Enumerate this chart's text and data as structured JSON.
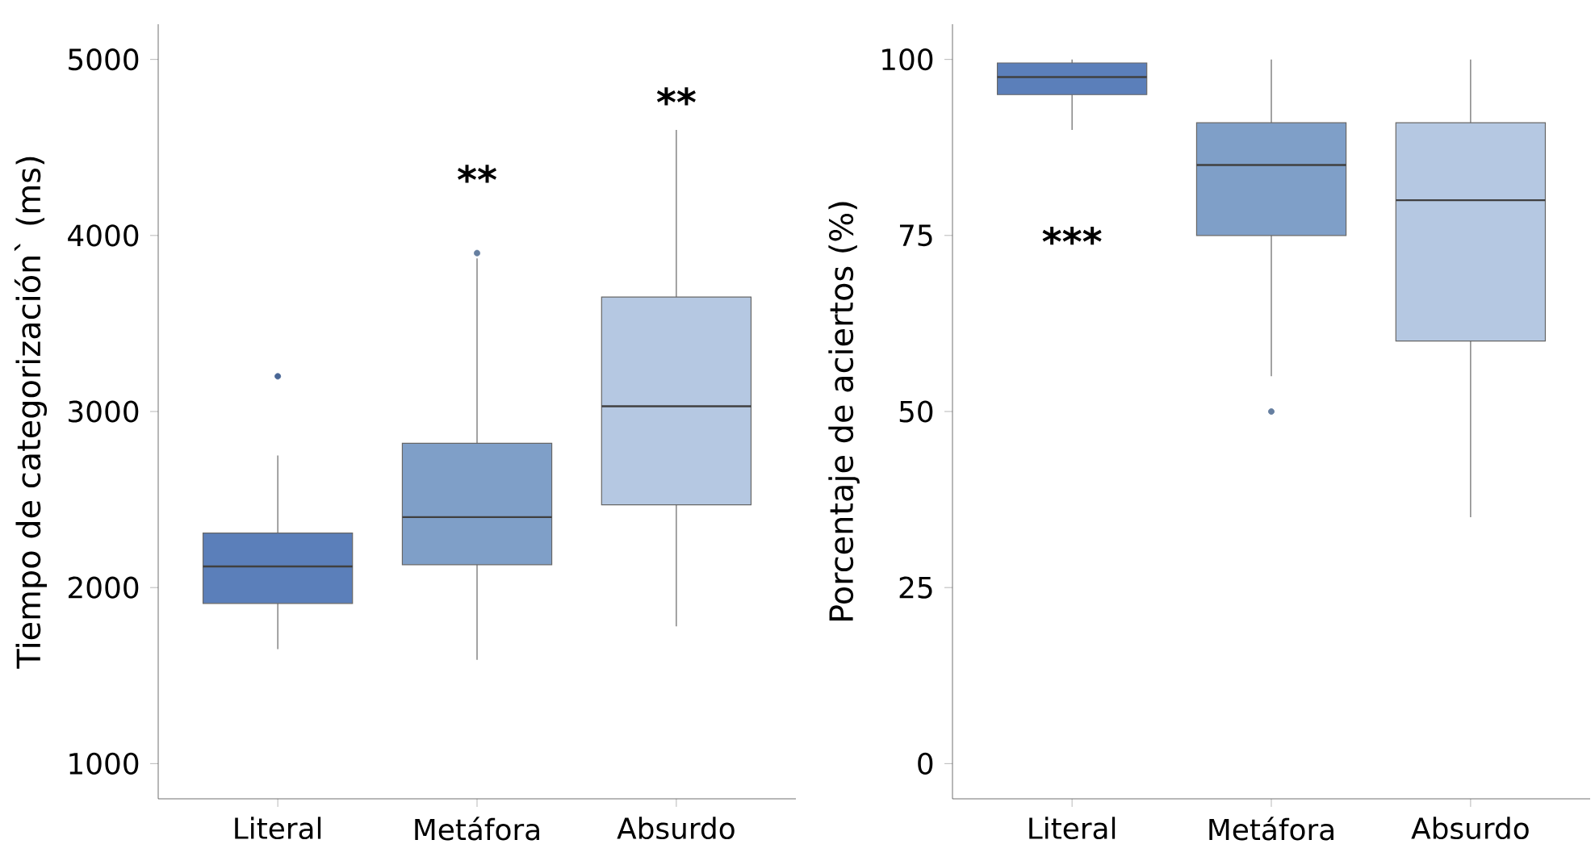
{
  "chart_data": [
    {
      "type": "box",
      "ylabel": "Tiempo de categorización` (ms)",
      "categories": [
        "Literal",
        "Metáfora",
        "Absurdo"
      ],
      "colors": [
        "#5b7fba",
        "#7f9fc8",
        "#b5c8e2"
      ],
      "boxes": [
        {
          "low": 1650,
          "q1": 1910,
          "median": 2120,
          "q3": 2310,
          "high": 2750,
          "outliers": [
            3200
          ]
        },
        {
          "low": 1590,
          "q1": 2130,
          "median": 2400,
          "q3": 2820,
          "high": 3870,
          "outliers": [
            3900
          ]
        },
        {
          "low": 1780,
          "q1": 2470,
          "median": 3030,
          "q3": 3650,
          "high": 4600
        }
      ],
      "ylim": [
        800,
        5200
      ],
      "yticks": [
        1000,
        2000,
        3000,
        4000,
        5000
      ],
      "grid": false,
      "annotations": [
        "**",
        "**"
      ]
    },
    {
      "type": "box",
      "ylabel": "Porcentaje de aciertos (%)",
      "categories": [
        "Literal",
        "Metáfora",
        "Absurdo"
      ],
      "colors": [
        "#5b7fba",
        "#7f9fc8",
        "#b5c8e2"
      ],
      "boxes": [
        {
          "low": 90,
          "q1": 95,
          "median": 97.5,
          "q3": 99.5,
          "high": 100
        },
        {
          "low": 55,
          "q1": 75,
          "median": 85,
          "q3": 91,
          "high": 100,
          "outliers": [
            50
          ]
        },
        {
          "low": 35,
          "q1": 60,
          "median": 80,
          "q3": 91,
          "high": 100
        }
      ],
      "ylim": [
        -5,
        105
      ],
      "yticks": [
        0,
        25,
        50,
        75,
        100
      ],
      "grid": false,
      "annotations": [
        "***"
      ]
    }
  ]
}
